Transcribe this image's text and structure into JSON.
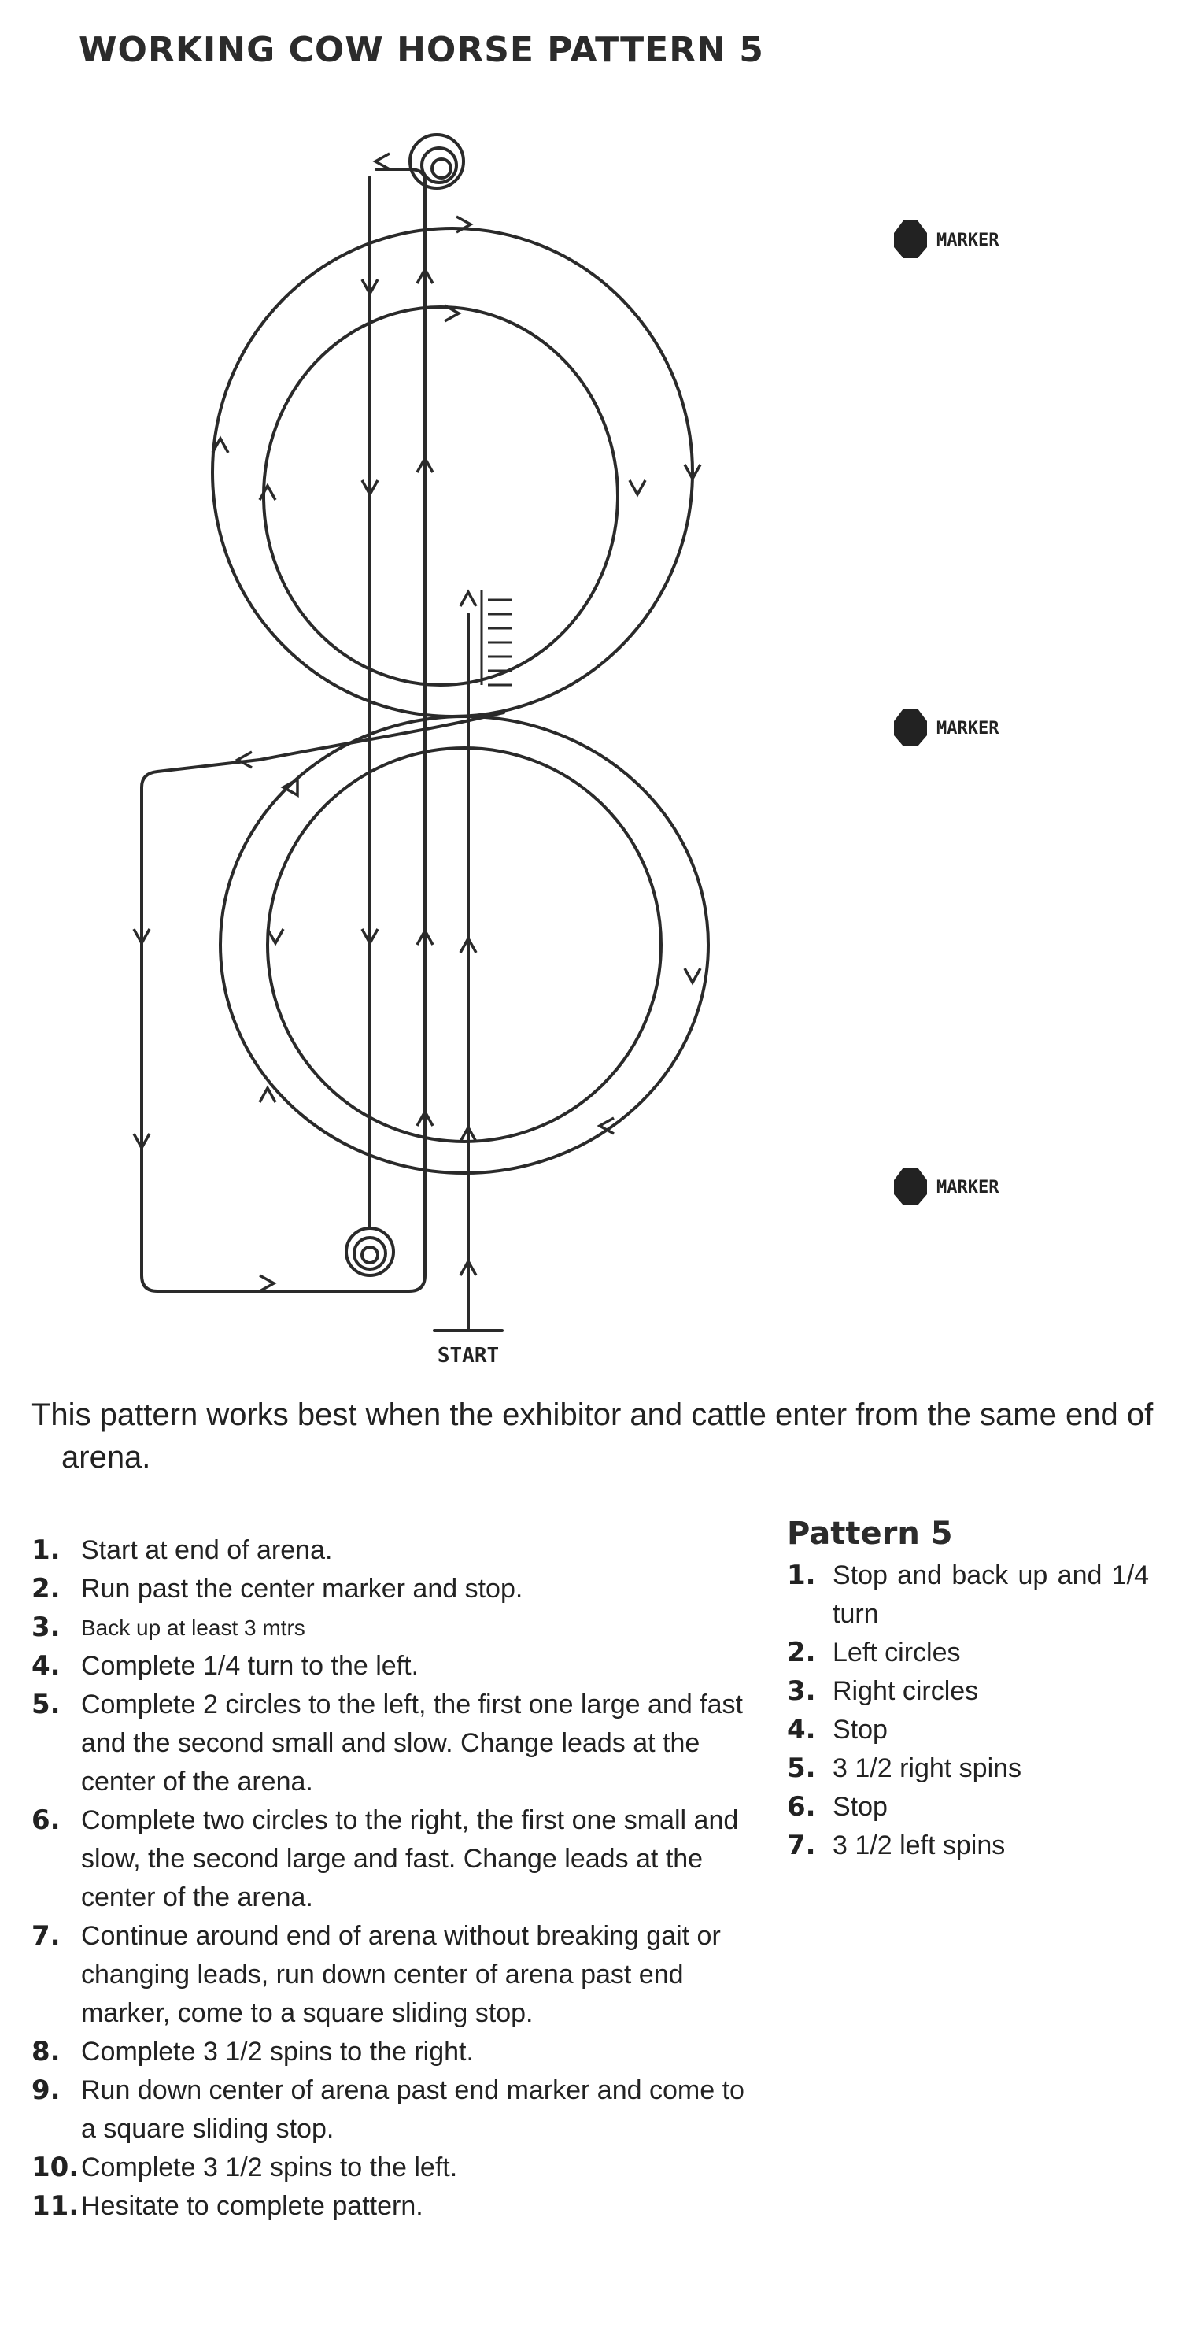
{
  "title": "WORKING COW HORSE PATTERN 5",
  "diagram": {
    "markers": [
      "MARKER",
      "MARKER",
      "MARKER"
    ],
    "start_label": "START"
  },
  "intro": "This pattern works best when the exhibitor and cattle enter from the same end of arena.",
  "steps": [
    {
      "num": "1.",
      "text": "Start at end of arena."
    },
    {
      "num": "2.",
      "text": "Run past the center marker and stop."
    },
    {
      "num": "3.",
      "text": "Back up at least 3 mtrs"
    },
    {
      "num": "4.",
      "text": "Complete 1/4 turn to the left."
    },
    {
      "num": "5.",
      "text": "Complete 2 circles to the left, the first one large and fast and the second small and slow. Change leads at the center of the arena."
    },
    {
      "num": "6.",
      "text": "Complete two circles to the right, the first one small and slow, the second large and fast. Change leads at the center of the arena."
    },
    {
      "num": "7.",
      "text": "Continue around end of arena without breaking gait or changing leads, run down center of arena past end marker, come to a square sliding stop."
    },
    {
      "num": "8.",
      "text": "Complete 3 1/2 spins to the right."
    },
    {
      "num": "9.",
      "text": "Run down center of arena past end marker and come to a square sliding stop."
    },
    {
      "num": "10.",
      "text": "Complete 3 1/2 spins to the left."
    },
    {
      "num": "11.",
      "text": "Hesitate to complete pattern."
    }
  ],
  "summary": {
    "title": "Pattern 5",
    "items": [
      {
        "num": "1.",
        "text": "Stop and back up and 1/4 turn"
      },
      {
        "num": "2.",
        "text": "Left circles"
      },
      {
        "num": "3.",
        "text": "Right circles"
      },
      {
        "num": "4.",
        "text": "Stop"
      },
      {
        "num": "5.",
        "text": "3 1/2 right spins"
      },
      {
        "num": "6.",
        "text": "Stop"
      },
      {
        "num": "7.",
        "text": "3 1/2 left spins"
      }
    ]
  }
}
